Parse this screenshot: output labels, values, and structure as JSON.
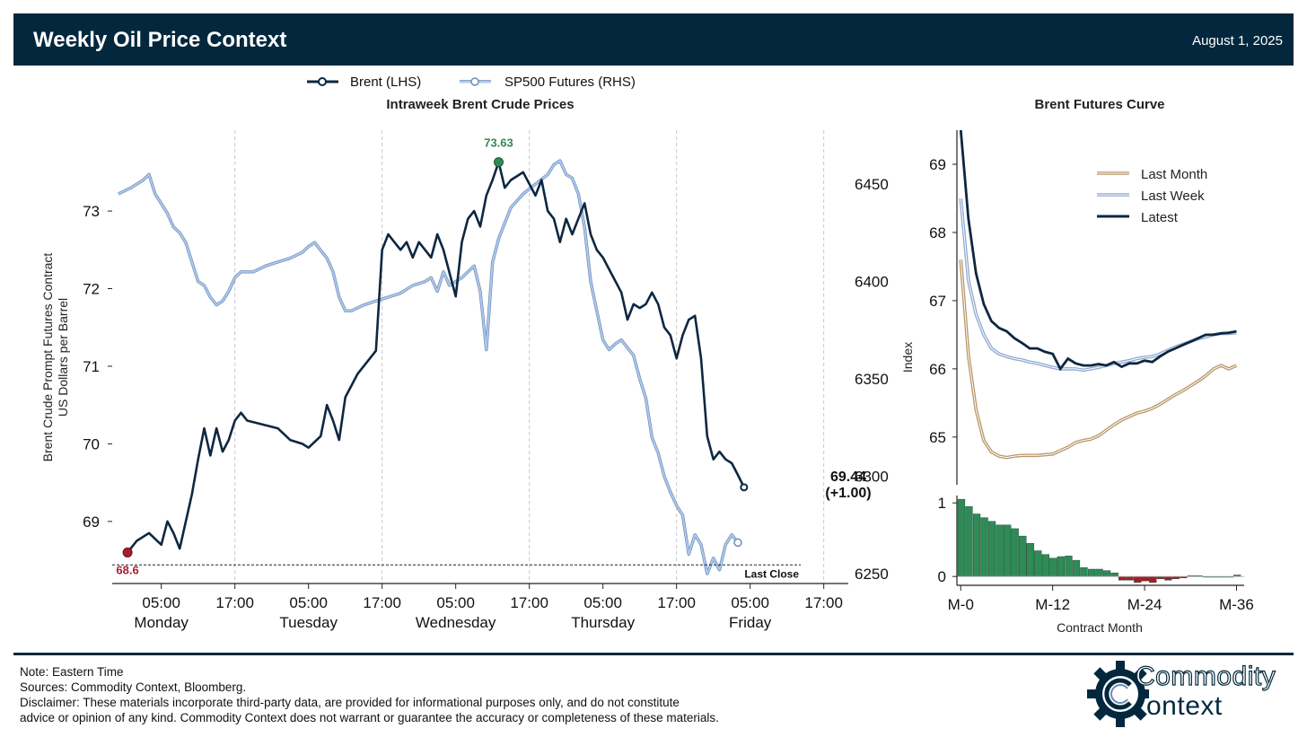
{
  "header": {
    "title": "Weekly Oil Price Context",
    "date": "August 1, 2025"
  },
  "colors": {
    "brent": "#0e2740",
    "sp500": "#adc8ec",
    "sp500_edge": "#6e8cb5",
    "last_month": "#b89668",
    "last_week": "#8fa9d0",
    "latest": "#0e2740",
    "high": "#2e8b57",
    "low": "#a31f2a",
    "pos_bar": "#2e8b57",
    "neg_bar": "#a31f2a"
  },
  "chart_data": [
    {
      "type": "line",
      "title": "Intraweek Brent Crude Prices",
      "ylabel_left": [
        "Brent Crude Prompt Futures Contract",
        "US Dollars per Barrel"
      ],
      "ylabel_right": "Index",
      "legend": [
        "Brent (LHS)",
        "SP500 Futures (RHS)"
      ],
      "x_ticks": [
        {
          "time": "05:00",
          "day": "Monday"
        },
        {
          "time": "17:00",
          "day": ""
        },
        {
          "time": "05:00",
          "day": "Tuesday"
        },
        {
          "time": "17:00",
          "day": ""
        },
        {
          "time": "05:00",
          "day": "Wednesday"
        },
        {
          "time": "17:00",
          "day": ""
        },
        {
          "time": "05:00",
          "day": "Thursday"
        },
        {
          "time": "17:00",
          "day": ""
        },
        {
          "time": "05:00",
          "day": "Friday"
        },
        {
          "time": "17:00",
          "day": ""
        }
      ],
      "x_hours_from_monday_midnight": [
        5,
        17,
        29,
        41,
        53,
        65,
        77,
        89,
        101,
        113
      ],
      "x_range_hours": [
        -3,
        117
      ],
      "y_left_ticks": [
        69,
        70,
        71,
        72,
        73
      ],
      "y_left_range": [
        68.2,
        74.1
      ],
      "y_right_ticks": [
        6250,
        6300,
        6350,
        6400,
        6450
      ],
      "y_right_range": [
        6245,
        6480
      ],
      "brent": {
        "points": [
          [
            -0.5,
            68.6
          ],
          [
            1,
            68.75
          ],
          [
            3,
            68.85
          ],
          [
            5,
            68.7
          ],
          [
            6,
            69.0
          ],
          [
            7,
            68.85
          ],
          [
            8,
            68.65
          ],
          [
            9,
            69.0
          ],
          [
            10,
            69.35
          ],
          [
            11,
            69.8
          ],
          [
            12,
            70.2
          ],
          [
            13,
            69.85
          ],
          [
            14,
            70.2
          ],
          [
            15,
            69.9
          ],
          [
            16,
            70.05
          ],
          [
            17,
            70.3
          ],
          [
            18,
            70.4
          ],
          [
            19,
            70.3
          ],
          [
            24,
            70.2
          ],
          [
            26,
            70.05
          ],
          [
            28,
            70.0
          ],
          [
            29,
            69.95
          ],
          [
            31,
            70.1
          ],
          [
            32,
            70.5
          ],
          [
            33,
            70.3
          ],
          [
            34,
            70.05
          ],
          [
            35,
            70.6
          ],
          [
            37,
            70.9
          ],
          [
            39,
            71.1
          ],
          [
            40,
            71.2
          ],
          [
            41,
            72.5
          ],
          [
            42,
            72.7
          ],
          [
            43,
            72.6
          ],
          [
            44,
            72.5
          ],
          [
            45,
            72.6
          ],
          [
            46,
            72.4
          ],
          [
            47,
            72.6
          ],
          [
            48,
            72.5
          ],
          [
            49,
            72.4
          ],
          [
            50,
            72.7
          ],
          [
            51,
            72.5
          ],
          [
            52,
            72.2
          ],
          [
            53,
            71.9
          ],
          [
            54,
            72.6
          ],
          [
            55,
            72.9
          ],
          [
            56,
            73.0
          ],
          [
            57,
            72.8
          ],
          [
            58,
            73.2
          ],
          [
            59,
            73.4
          ],
          [
            60,
            73.63
          ],
          [
            61,
            73.3
          ],
          [
            62,
            73.4
          ],
          [
            64,
            73.5
          ],
          [
            66,
            73.2
          ],
          [
            67,
            73.4
          ],
          [
            68,
            73.0
          ],
          [
            69,
            72.9
          ],
          [
            70,
            72.6
          ],
          [
            71,
            72.9
          ],
          [
            72,
            72.7
          ],
          [
            73,
            72.9
          ],
          [
            74,
            73.1
          ],
          [
            75,
            72.7
          ],
          [
            76,
            72.5
          ],
          [
            77,
            72.4
          ],
          [
            78,
            72.25
          ],
          [
            80,
            71.95
          ],
          [
            81,
            71.6
          ],
          [
            82,
            71.8
          ],
          [
            83,
            71.75
          ],
          [
            84,
            71.8
          ],
          [
            85,
            71.95
          ],
          [
            86,
            71.8
          ],
          [
            87,
            71.5
          ],
          [
            88,
            71.4
          ],
          [
            89,
            71.1
          ],
          [
            90,
            71.4
          ],
          [
            91,
            71.6
          ],
          [
            92,
            71.65
          ],
          [
            93,
            71.1
          ],
          [
            94,
            70.1
          ],
          [
            95,
            69.8
          ],
          [
            96,
            69.9
          ],
          [
            97,
            69.8
          ],
          [
            98,
            69.75
          ],
          [
            99,
            69.6
          ],
          [
            100,
            69.44
          ]
        ],
        "last_value": "69.44",
        "change": "(+1.00)",
        "high": {
          "hour": 60,
          "value": 73.63,
          "label": "73.63"
        },
        "low": {
          "hour": -0.5,
          "value": 68.6,
          "label": "68.6"
        },
        "last_close": {
          "value": 68.44,
          "label": "Last Close"
        }
      },
      "sp500": {
        "points": [
          [
            -2,
            6445
          ],
          [
            0,
            6448
          ],
          [
            2,
            6452
          ],
          [
            3,
            6455
          ],
          [
            4,
            6445
          ],
          [
            5,
            6440
          ],
          [
            6,
            6435
          ],
          [
            7,
            6428
          ],
          [
            8,
            6425
          ],
          [
            9,
            6420
          ],
          [
            10,
            6410
          ],
          [
            11,
            6400
          ],
          [
            12,
            6398
          ],
          [
            13,
            6392
          ],
          [
            14,
            6388
          ],
          [
            15,
            6390
          ],
          [
            16,
            6395
          ],
          [
            17,
            6402
          ],
          [
            18,
            6405
          ],
          [
            20,
            6405
          ],
          [
            22,
            6408
          ],
          [
            24,
            6410
          ],
          [
            26,
            6412
          ],
          [
            28,
            6415
          ],
          [
            29,
            6418
          ],
          [
            30,
            6420
          ],
          [
            31,
            6416
          ],
          [
            32,
            6412
          ],
          [
            33,
            6405
          ],
          [
            34,
            6392
          ],
          [
            35,
            6385
          ],
          [
            36,
            6385
          ],
          [
            38,
            6388
          ],
          [
            40,
            6390
          ],
          [
            42,
            6392
          ],
          [
            44,
            6394
          ],
          [
            46,
            6398
          ],
          [
            48,
            6400
          ],
          [
            49,
            6402
          ],
          [
            50,
            6395
          ],
          [
            51,
            6405
          ],
          [
            52,
            6398
          ],
          [
            53,
            6400
          ],
          [
            54,
            6402
          ],
          [
            55,
            6405
          ],
          [
            56,
            6408
          ],
          [
            57,
            6395
          ],
          [
            58,
            6365
          ],
          [
            59,
            6410
          ],
          [
            60,
            6422
          ],
          [
            61,
            6430
          ],
          [
            62,
            6438
          ],
          [
            64,
            6445
          ],
          [
            66,
            6450
          ],
          [
            68,
            6455
          ],
          [
            69,
            6460
          ],
          [
            70,
            6462
          ],
          [
            71,
            6455
          ],
          [
            72,
            6453
          ],
          [
            73,
            6445
          ],
          [
            74,
            6428
          ],
          [
            75,
            6400
          ],
          [
            76,
            6385
          ],
          [
            77,
            6370
          ],
          [
            78,
            6365
          ],
          [
            79,
            6368
          ],
          [
            80,
            6370
          ],
          [
            82,
            6362
          ],
          [
            83,
            6350
          ],
          [
            84,
            6340
          ],
          [
            85,
            6320
          ],
          [
            86,
            6312
          ],
          [
            87,
            6300
          ],
          [
            88,
            6292
          ],
          [
            89,
            6285
          ],
          [
            90,
            6280
          ],
          [
            91,
            6260
          ],
          [
            92,
            6270
          ],
          [
            93,
            6265
          ],
          [
            94,
            6250
          ],
          [
            95,
            6258
          ],
          [
            96,
            6252
          ],
          [
            97,
            6265
          ],
          [
            98,
            6270
          ],
          [
            99,
            6266
          ]
        ],
        "last_value": 6266
      }
    },
    {
      "type": "line",
      "title": "Brent Futures Curve",
      "ylabel": "",
      "xlabel": "Contract Month",
      "x_ticks": [
        "M-0",
        "M-12",
        "M-24",
        "M-36"
      ],
      "x_tick_values": [
        0,
        12,
        24,
        36
      ],
      "x_range": [
        -0.5,
        37
      ],
      "y_ticks": [
        65,
        66,
        67,
        68,
        69
      ],
      "y_range": [
        64.3,
        69.5
      ],
      "legend": [
        "Last Month",
        "Last Week",
        "Latest"
      ],
      "series": [
        {
          "name": "Last Month",
          "values": [
            67.6,
            66.2,
            65.4,
            64.95,
            64.78,
            64.72,
            64.7,
            64.72,
            64.73,
            64.73,
            64.73,
            64.74,
            64.75,
            64.8,
            64.85,
            64.92,
            64.95,
            64.97,
            65.02,
            65.1,
            65.18,
            65.25,
            65.3,
            65.35,
            65.38,
            65.42,
            65.48,
            65.55,
            65.62,
            65.68,
            65.75,
            65.82,
            65.9,
            66.0,
            66.05,
            66.0,
            66.05
          ]
        },
        {
          "name": "Last Week",
          "values": [
            68.5,
            67.3,
            66.8,
            66.5,
            66.3,
            66.22,
            66.18,
            66.15,
            66.13,
            66.1,
            66.08,
            66.05,
            66.02,
            66.0,
            66.0,
            66.0,
            65.98,
            66.0,
            66.02,
            66.05,
            66.08,
            66.1,
            66.12,
            66.15,
            66.17,
            66.18,
            66.22,
            66.27,
            66.32,
            66.36,
            66.4,
            66.44,
            66.47,
            66.5,
            66.52,
            66.52,
            66.53
          ]
        },
        {
          "name": "Latest",
          "values": [
            69.5,
            68.2,
            67.4,
            66.95,
            66.7,
            66.6,
            66.55,
            66.45,
            66.38,
            66.3,
            66.3,
            66.25,
            66.22,
            66.0,
            66.15,
            66.08,
            66.05,
            66.05,
            66.07,
            66.05,
            66.1,
            66.03,
            66.08,
            66.08,
            66.12,
            66.1,
            66.18,
            66.25,
            66.3,
            66.35,
            66.4,
            66.45,
            66.5,
            66.5,
            66.52,
            66.53,
            66.55
          ]
        }
      ],
      "bar_panel": {
        "y_ticks": [
          0,
          1
        ],
        "y_range": [
          -0.12,
          1.1
        ],
        "values": [
          1.05,
          0.95,
          0.85,
          0.8,
          0.75,
          0.7,
          0.7,
          0.65,
          0.55,
          0.45,
          0.35,
          0.3,
          0.25,
          0.27,
          0.28,
          0.22,
          0.12,
          0.1,
          0.1,
          0.08,
          0.05,
          -0.05,
          -0.05,
          -0.08,
          -0.06,
          -0.08,
          -0.03,
          -0.05,
          -0.03,
          -0.02,
          0.01,
          0.01,
          0.0,
          0.0,
          0.0,
          0.0,
          0.02
        ]
      }
    }
  ],
  "footer": {
    "note": "Note: Eastern Time",
    "sources": "Sources: Commodity Context, Bloomberg.",
    "disclaimer_1": "Disclaimer: These materials incorporate third-party data, are provided for informational purposes only, and do not constitute",
    "disclaimer_2": "advice or opinion of any kind. Commodity Context does not warrant or guarantee the accuracy or completeness of these materials."
  },
  "logo": {
    "word_1": "Commodity",
    "word_2": "ontext"
  }
}
